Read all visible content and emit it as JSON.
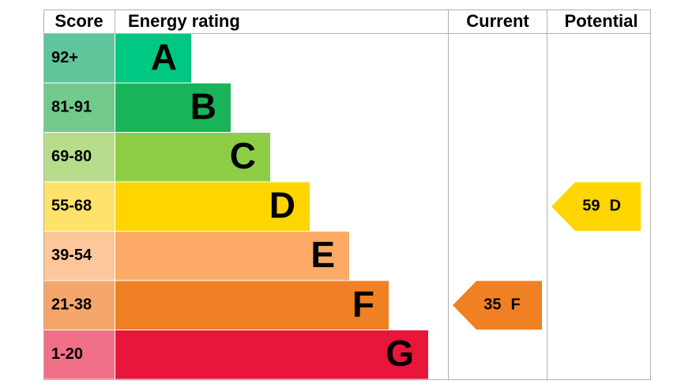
{
  "headers": {
    "score": "Score",
    "rating": "Energy rating",
    "current": "Current",
    "potential": "Potential"
  },
  "bands": [
    {
      "score": "92+",
      "letter": "A",
      "color": "#00c781",
      "score_color": "#5fc59b"
    },
    {
      "score": "81-91",
      "letter": "B",
      "color": "#19b459",
      "score_color": "#72c98c"
    },
    {
      "score": "69-80",
      "letter": "C",
      "color": "#8dce46",
      "score_color": "#b7dd8c"
    },
    {
      "score": "55-68",
      "letter": "D",
      "color": "#ffd500",
      "score_color": "#ffe26a"
    },
    {
      "score": "39-54",
      "letter": "E",
      "color": "#fcaa65",
      "score_color": "#fdc79b"
    },
    {
      "score": "21-38",
      "letter": "F",
      "color": "#ef8023",
      "score_color": "#f4a66c"
    },
    {
      "score": "1-20",
      "letter": "G",
      "color": "#e9153b",
      "score_color": "#f07088"
    }
  ],
  "current": {
    "value": "35",
    "letter": "F",
    "color": "#ef8023"
  },
  "potential": {
    "value": "59",
    "letter": "D",
    "color": "#ffd500"
  }
}
